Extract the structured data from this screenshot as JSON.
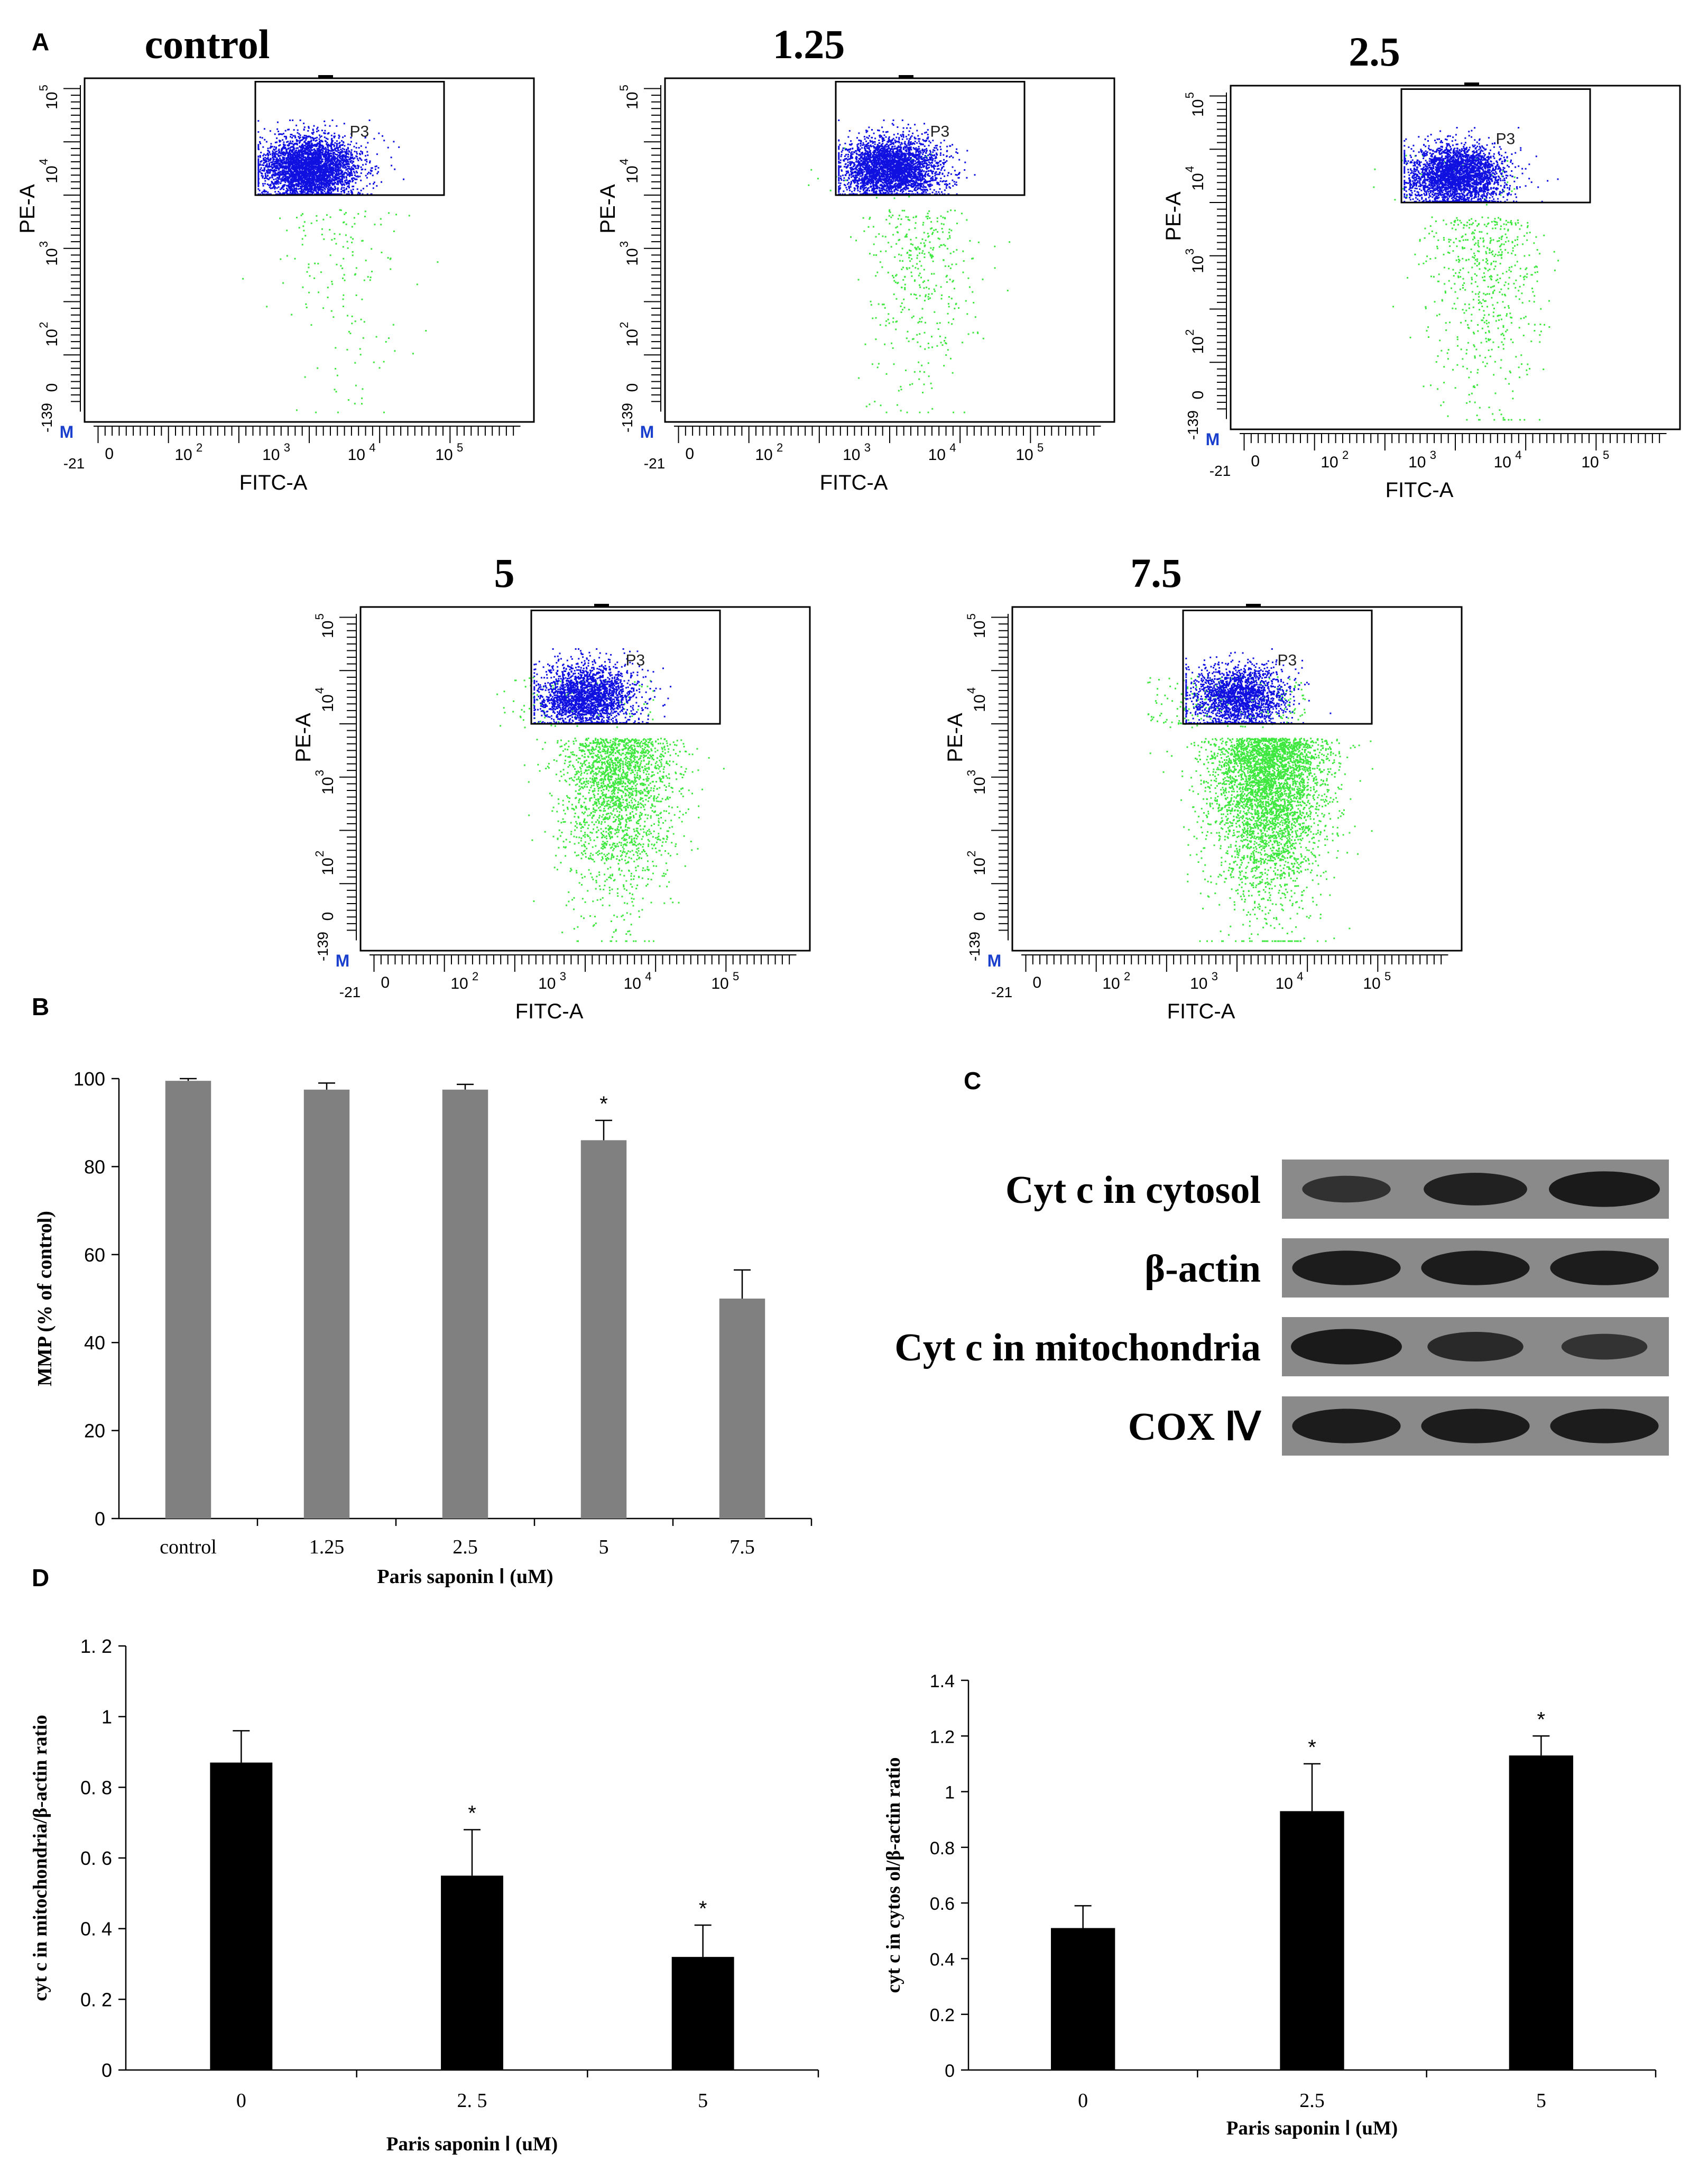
{
  "panel_labels": {
    "a": "A",
    "b": "B",
    "c": "C",
    "d": "D"
  },
  "colors": {
    "gated": "#1010e0",
    "ungated": "#3ee83e",
    "bar_gray": "#808080",
    "bar_black": "#000000",
    "axis": "#000000",
    "blot_band": "#1a1a1a",
    "blot_bg": "#8a8a8a"
  },
  "flow": {
    "x_label": "FITC-A",
    "y_label": "PE-A",
    "gate_label": "P3",
    "marker_label": "M",
    "x_ticks": {
      "min": "-21",
      "zero": "0",
      "e2": "10",
      "e3": "10",
      "e4": "10",
      "e5": "10",
      "p2": "2",
      "p3": "3",
      "p4": "4",
      "p5": "5"
    },
    "y_ticks": {
      "min": "-139",
      "zero": "0",
      "e2": "10",
      "e3": "10",
      "e4": "10",
      "e5": "10",
      "p2": "2",
      "p3": "3",
      "p4": "4",
      "p5": "5"
    },
    "plots": [
      {
        "title": "control"
      },
      {
        "title": "1.25"
      },
      {
        "title": "2.5"
      },
      {
        "title": "5"
      },
      {
        "title": "7.5"
      }
    ]
  },
  "blot": {
    "rows": [
      {
        "label": "Cyt c in cytosol",
        "intensities": [
          0.55,
          0.85,
          1.0
        ]
      },
      {
        "label": "β-actin",
        "intensities": [
          0.95,
          0.95,
          0.95
        ]
      },
      {
        "label": "Cyt c in mitochondria",
        "intensities": [
          1.0,
          0.7,
          0.5
        ]
      },
      {
        "label": "COX Ⅳ",
        "intensities": [
          0.95,
          0.95,
          0.95
        ]
      }
    ]
  },
  "chart_data": [
    {
      "panel": "B",
      "type": "bar",
      "categories": [
        "control",
        "1.25",
        "2.5",
        "5",
        "7.5"
      ],
      "values": [
        99.5,
        97.5,
        97.5,
        86,
        50
      ],
      "errors": [
        0.5,
        1.5,
        1.2,
        4.5,
        6.5
      ],
      "significance": [
        "",
        "",
        "",
        "*",
        ""
      ],
      "yticks": [
        0,
        20,
        40,
        60,
        80,
        100
      ],
      "ylim": [
        0,
        100
      ],
      "ylabel": "MMP (% of control)",
      "xlabel": "Paris saponin  Ⅰ (uM)"
    },
    {
      "panel": "D-left",
      "type": "bar",
      "categories": [
        "0",
        "2. 5",
        "5"
      ],
      "values": [
        0.87,
        0.55,
        0.32
      ],
      "errors": [
        0.09,
        0.13,
        0.09
      ],
      "significance": [
        "",
        "*",
        "*"
      ],
      "yticks": [
        "0",
        "0. 2",
        "0. 4",
        "0. 6",
        "0. 8",
        "1",
        "1. 2"
      ],
      "ylim": [
        0,
        1.2
      ],
      "ylabel": "cyt c in mitochondria/β-actin ratio",
      "xlabel": "Paris saponin  Ⅰ (uM)"
    },
    {
      "panel": "D-right",
      "type": "bar",
      "categories": [
        "0",
        "2.5",
        "5"
      ],
      "values": [
        0.51,
        0.93,
        1.13
      ],
      "errors": [
        0.08,
        0.17,
        0.07
      ],
      "significance": [
        "",
        "*",
        "*"
      ],
      "yticks": [
        "0",
        "0.2",
        "0.4",
        "0.6",
        "0.8",
        "1",
        "1.2",
        "1.4"
      ],
      "ylim": [
        0,
        1.4
      ],
      "ylabel": "cyt c in cytos ol/β-actin ratio",
      "xlabel": "Paris saponin  Ⅰ (uM)"
    }
  ]
}
